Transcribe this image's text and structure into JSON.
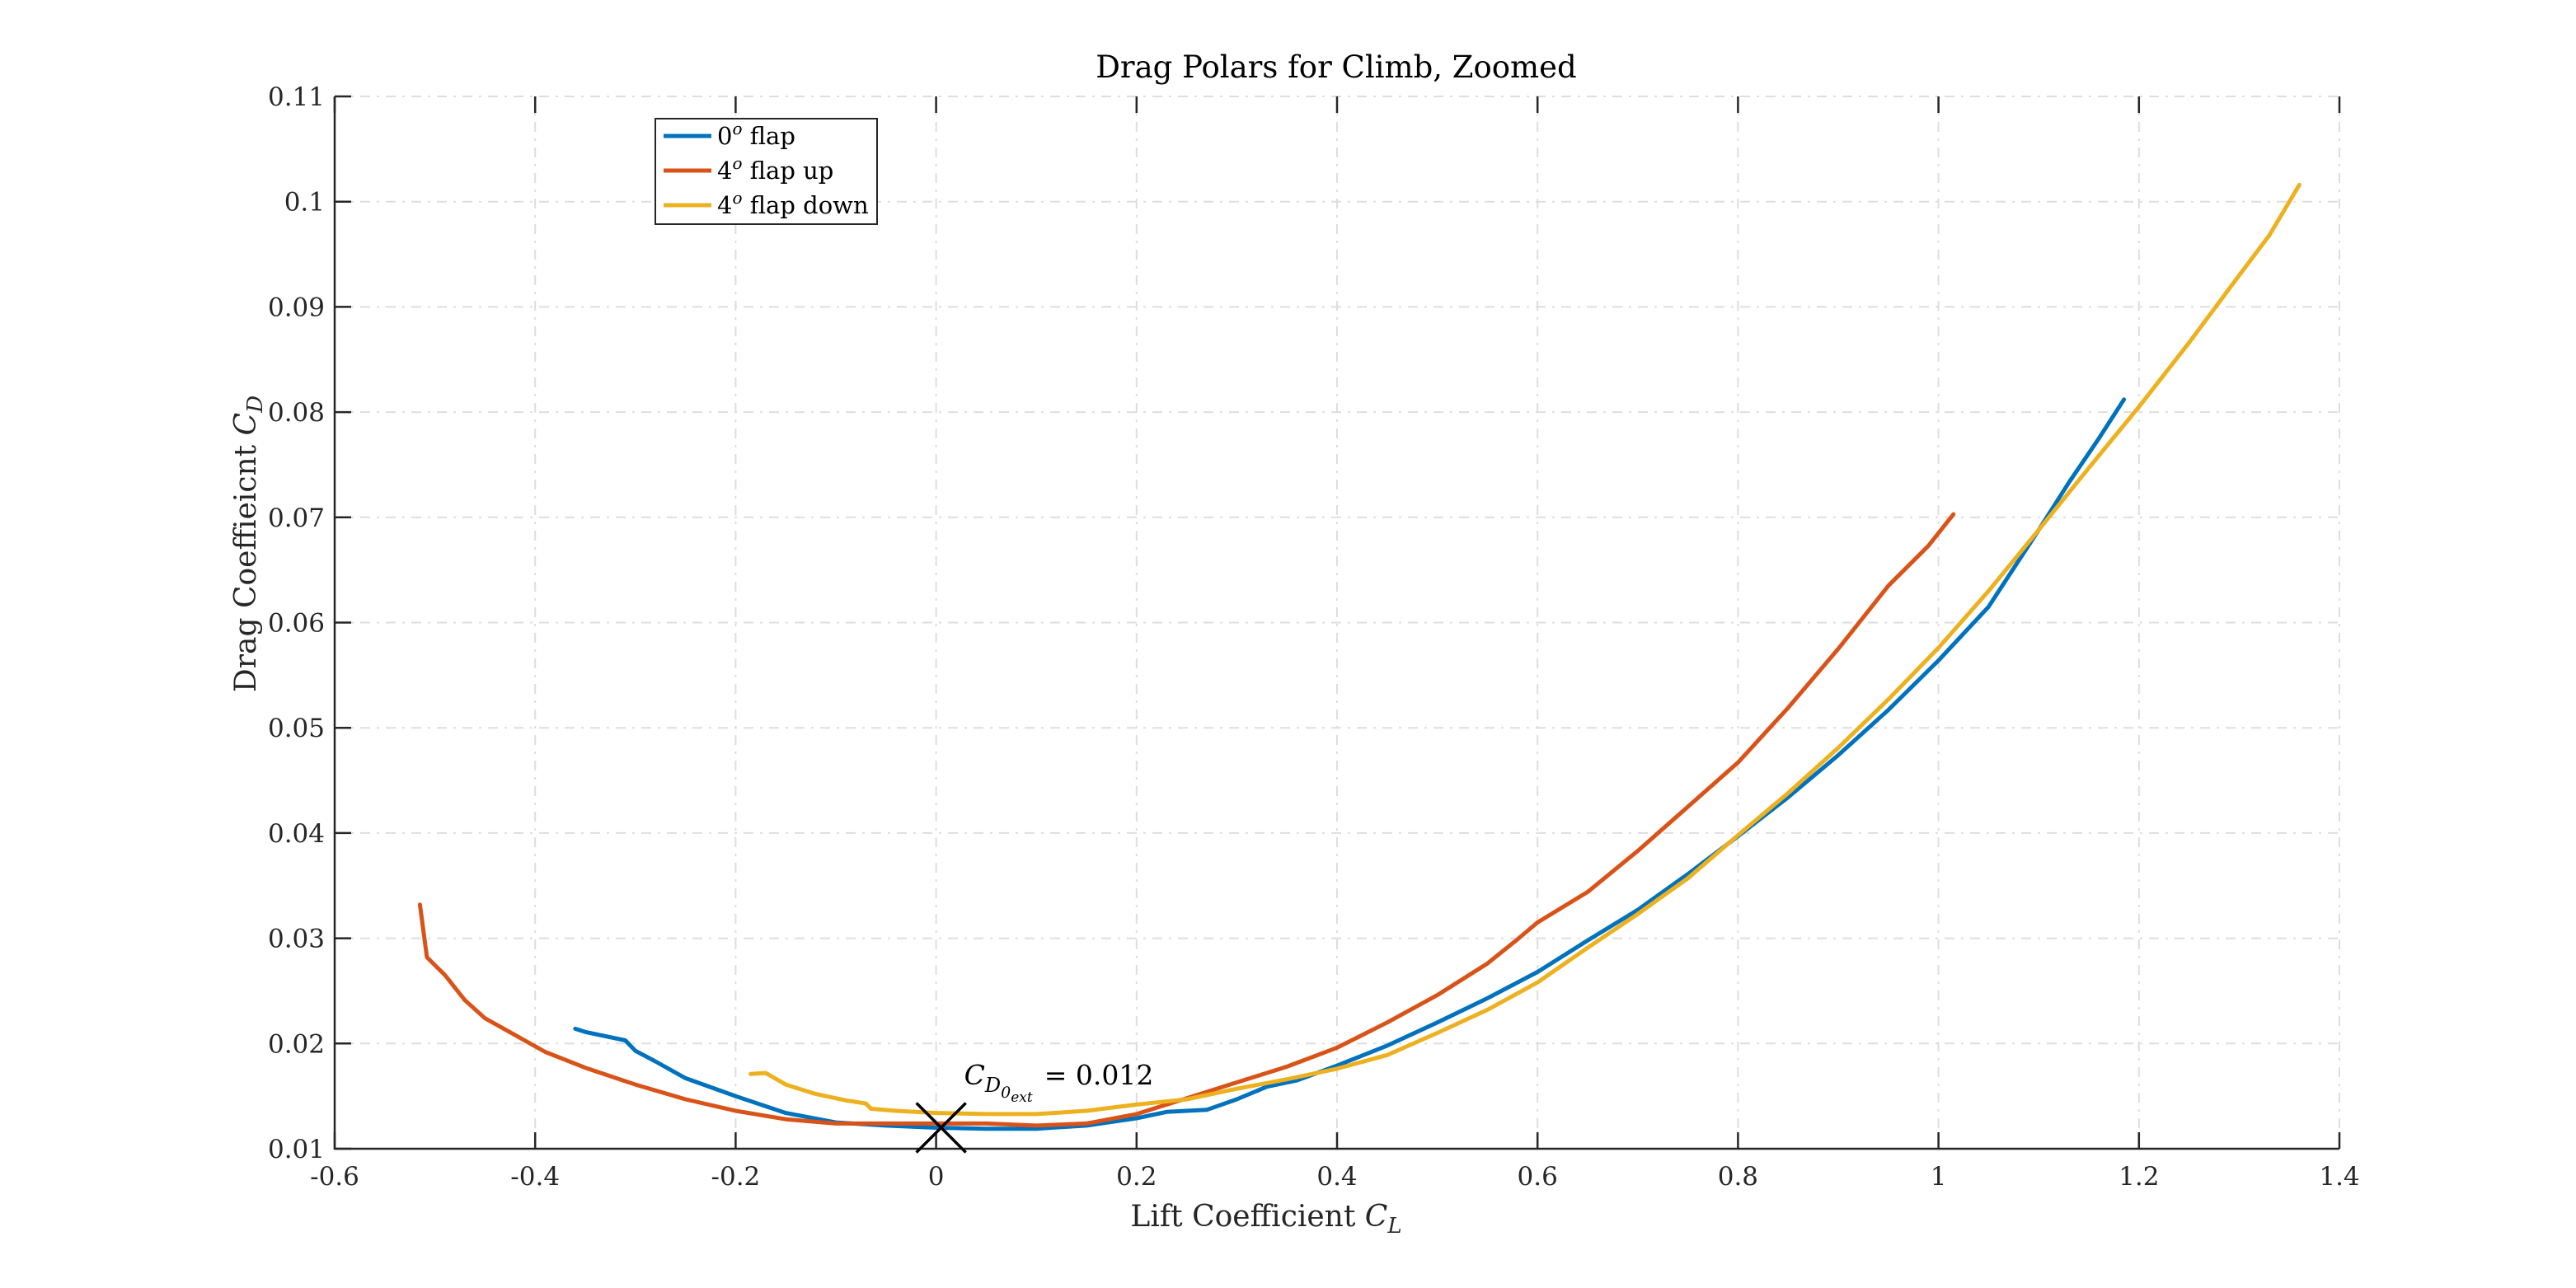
{
  "chart_data": {
    "type": "line",
    "title": "Drag Polars for Climb, Zoomed",
    "xlabel": "Lift Coefficient C_L",
    "ylabel": "Drag Coeffieicnt C_D",
    "xlim": [
      -0.6,
      1.4
    ],
    "ylim": [
      0.01,
      0.11
    ],
    "xticks": [
      -0.6,
      -0.4,
      -0.2,
      0,
      0.2,
      0.4,
      0.6,
      0.8,
      1,
      1.2,
      1.4
    ],
    "xtick_labels": [
      "-0.6",
      "-0.4",
      "-0.2",
      "0",
      "0.2",
      "0.4",
      "0.6",
      "0.8",
      "1",
      "1.2",
      "1.4"
    ],
    "yticks": [
      0.01,
      0.02,
      0.03,
      0.04,
      0.05,
      0.06,
      0.07,
      0.08,
      0.09,
      0.1,
      0.11
    ],
    "ytick_labels": [
      "0.01",
      "0.02",
      "0.03",
      "0.04",
      "0.05",
      "0.06",
      "0.07",
      "0.08",
      "0.09",
      "0.1",
      "0.11"
    ],
    "grid": true,
    "legend_position": "top-left",
    "series": [
      {
        "name": "0^o flap",
        "color": "#0072BD",
        "x": [
          -0.36,
          -0.35,
          -0.31,
          -0.3,
          -0.28,
          -0.25,
          -0.2,
          -0.15,
          -0.1,
          -0.05,
          0,
          0.05,
          0.1,
          0.15,
          0.2,
          0.23,
          0.27,
          0.3,
          0.33,
          0.36,
          0.4,
          0.45,
          0.5,
          0.55,
          0.6,
          0.65,
          0.7,
          0.75,
          0.8,
          0.85,
          0.9,
          0.95,
          1.0,
          1.05,
          1.1,
          1.13,
          1.16,
          1.185
        ],
        "y": [
          0.0214,
          0.0211,
          0.0203,
          0.0193,
          0.0183,
          0.0167,
          0.015,
          0.0134,
          0.0125,
          0.0122,
          0.012,
          0.0119,
          0.0119,
          0.0122,
          0.0129,
          0.0135,
          0.0137,
          0.0147,
          0.0159,
          0.0165,
          0.0179,
          0.0198,
          0.022,
          0.0243,
          0.0268,
          0.0298,
          0.0327,
          0.0361,
          0.0397,
          0.0434,
          0.0474,
          0.0517,
          0.0564,
          0.0615,
          0.0688,
          0.0733,
          0.0775,
          0.0812
        ]
      },
      {
        "name": "4^o flap up",
        "color": "#D95319",
        "x": [
          -0.515,
          -0.508,
          -0.49,
          -0.47,
          -0.45,
          -0.42,
          -0.39,
          -0.35,
          -0.3,
          -0.25,
          -0.2,
          -0.15,
          -0.1,
          -0.05,
          0,
          0.05,
          0.1,
          0.15,
          0.2,
          0.25,
          0.3,
          0.35,
          0.4,
          0.45,
          0.5,
          0.55,
          0.58,
          0.6,
          0.65,
          0.7,
          0.75,
          0.8,
          0.85,
          0.9,
          0.95,
          0.99,
          1.015
        ],
        "y": [
          0.0332,
          0.0282,
          0.0265,
          0.0241,
          0.0224,
          0.0208,
          0.0192,
          0.0177,
          0.0161,
          0.0147,
          0.0136,
          0.0128,
          0.0124,
          0.0124,
          0.0124,
          0.0124,
          0.0122,
          0.0124,
          0.0133,
          0.0148,
          0.0163,
          0.0178,
          0.0196,
          0.022,
          0.0246,
          0.0276,
          0.0299,
          0.0315,
          0.0344,
          0.0383,
          0.0425,
          0.0467,
          0.0519,
          0.0575,
          0.0635,
          0.0673,
          0.0703
        ]
      },
      {
        "name": "4^o flap down",
        "color": "#EDB120",
        "x": [
          -0.185,
          -0.17,
          -0.15,
          -0.12,
          -0.09,
          -0.07,
          -0.065,
          -0.04,
          0,
          0.05,
          0.1,
          0.15,
          0.2,
          0.25,
          0.3,
          0.35,
          0.4,
          0.45,
          0.5,
          0.55,
          0.6,
          0.65,
          0.7,
          0.75,
          0.8,
          0.85,
          0.9,
          0.95,
          1.0,
          1.05,
          1.1,
          1.15,
          1.2,
          1.25,
          1.3,
          1.33,
          1.36
        ],
        "y": [
          0.0171,
          0.0172,
          0.0161,
          0.0152,
          0.0146,
          0.0143,
          0.0138,
          0.0136,
          0.0134,
          0.0133,
          0.0133,
          0.0136,
          0.0142,
          0.0147,
          0.0157,
          0.0166,
          0.0176,
          0.0189,
          0.021,
          0.0232,
          0.0258,
          0.0291,
          0.0323,
          0.0357,
          0.0398,
          0.0438,
          0.0481,
          0.0527,
          0.0576,
          0.063,
          0.0688,
          0.0747,
          0.0805,
          0.0866,
          0.093,
          0.0968,
          0.1016
        ]
      }
    ],
    "annotations": [
      {
        "type": "marker",
        "marker": "x",
        "x": 0.005,
        "y": 0.012,
        "color": "#000000"
      },
      {
        "type": "text",
        "base": "C",
        "sub": "D",
        "subsub": "0",
        "subsubsub": "ext",
        "value_text": "= 0.012",
        "x": 0.028,
        "y": 0.0161
      }
    ]
  }
}
